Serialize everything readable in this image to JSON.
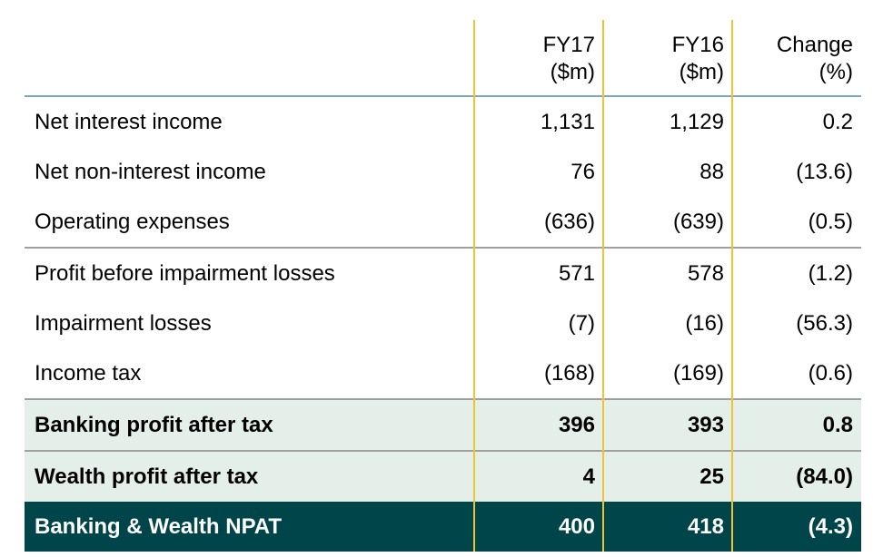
{
  "colors": {
    "highlight_row": "#e5efea",
    "total_row": "#00454a",
    "column_divider": "#f2c230",
    "header_rule": "#7fa5b8"
  },
  "header": {
    "fy17": [
      "FY17",
      "($m)"
    ],
    "fy16": [
      "FY16",
      "($m)"
    ],
    "change": [
      "Change",
      "(%)"
    ]
  },
  "rows": [
    {
      "label": "Net interest income",
      "fy17": "1,131",
      "fy16": "1,129",
      "change": "0.2"
    },
    {
      "label": "Net non-interest income",
      "fy17": "76",
      "fy16": "88",
      "change": "(13.6)"
    },
    {
      "label": "Operating expenses",
      "fy17": "(636)",
      "fy16": "(639)",
      "change": "(0.5)"
    },
    {
      "label": "Profit before impairment losses",
      "fy17": "571",
      "fy16": "578",
      "change": "(1.2)"
    },
    {
      "label": "Impairment losses",
      "fy17": "(7)",
      "fy16": "(16)",
      "change": "(56.3)"
    },
    {
      "label": "Income tax",
      "fy17": "(168)",
      "fy16": "(169)",
      "change": "(0.6)"
    },
    {
      "label": "Banking profit after tax",
      "fy17": "396",
      "fy16": "393",
      "change": "0.8"
    },
    {
      "label": "Wealth profit after tax",
      "fy17": "4",
      "fy16": "25",
      "change": "(84.0)"
    },
    {
      "label": "Banking & Wealth NPAT",
      "fy17": "400",
      "fy16": "418",
      "change": "(4.3)"
    }
  ]
}
